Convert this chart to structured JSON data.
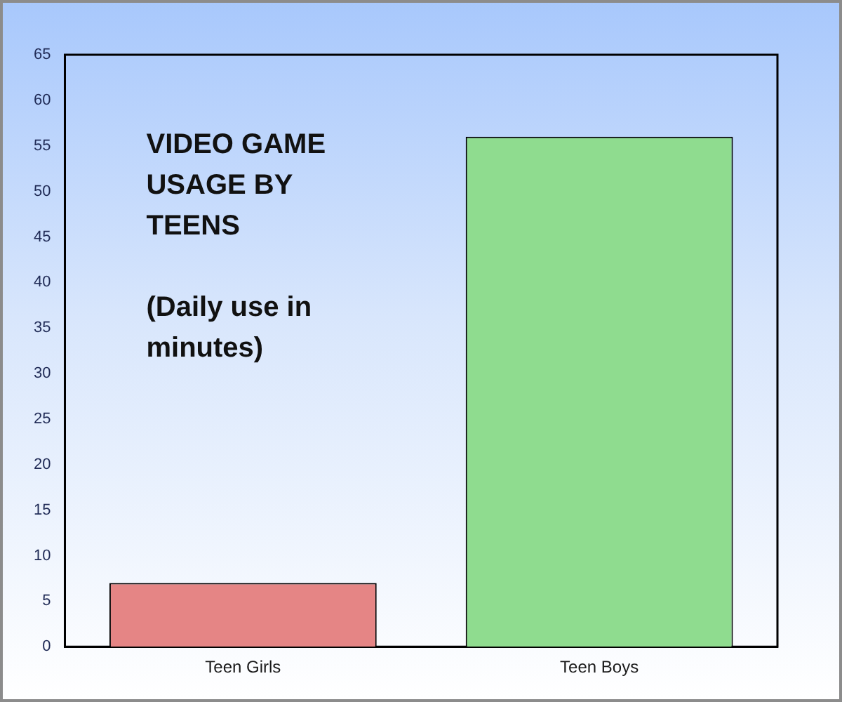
{
  "chart_data": {
    "type": "bar",
    "title": "VIDEO GAME USAGE BY TEENS",
    "subtitle": "(Daily use in minutes)",
    "categories": [
      "Teen Girls",
      "Teen Boys"
    ],
    "values": [
      7,
      56
    ],
    "colors": [
      "#e58585",
      "#8fdc8f"
    ],
    "ylim": [
      0,
      65
    ],
    "yticks": [
      0,
      5,
      10,
      15,
      20,
      25,
      30,
      35,
      40,
      45,
      50,
      55,
      60,
      65
    ]
  }
}
